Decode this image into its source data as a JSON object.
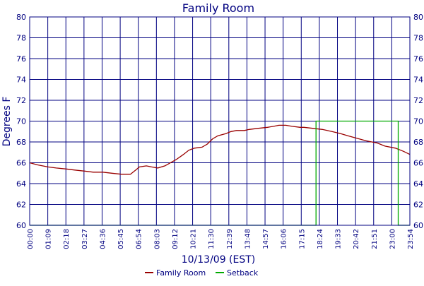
{
  "chart_data": {
    "type": "line",
    "title": "Family Room",
    "xlabel": "10/13/09 (EST)",
    "ylabel": "Degrees F",
    "ylim": [
      60,
      80
    ],
    "xlim_minutes": [
      0,
      1434
    ],
    "y_ticks": [
      60,
      62,
      64,
      66,
      68,
      70,
      72,
      74,
      76,
      78,
      80
    ],
    "x_tick_labels": [
      "00:00",
      "01:09",
      "02:18",
      "03:27",
      "04:36",
      "05:45",
      "06:54",
      "08:03",
      "09:12",
      "10:21",
      "11:30",
      "12:39",
      "13:48",
      "14:57",
      "16:06",
      "17:15",
      "18:24",
      "19:33",
      "20:42",
      "21:51",
      "23:00",
      "23:54"
    ],
    "grid": true,
    "legend_position": "bottom",
    "series": [
      {
        "name": "Family Room",
        "color": "#990000",
        "x": [
          "00:00",
          "00:30",
          "01:09",
          "01:40",
          "02:18",
          "02:50",
          "03:27",
          "04:00",
          "04:36",
          "05:10",
          "05:45",
          "06:20",
          "06:40",
          "06:54",
          "07:20",
          "07:40",
          "08:03",
          "08:30",
          "09:12",
          "09:40",
          "10:00",
          "10:21",
          "10:50",
          "11:10",
          "11:30",
          "11:50",
          "12:20",
          "12:39",
          "13:00",
          "13:30",
          "13:48",
          "14:20",
          "14:57",
          "15:20",
          "15:40",
          "16:06",
          "16:30",
          "17:00",
          "17:15",
          "17:50",
          "18:24",
          "19:00",
          "19:33",
          "20:00",
          "20:42",
          "21:10",
          "21:51",
          "22:20",
          "23:00",
          "23:30",
          "23:54"
        ],
        "values": [
          66.0,
          65.8,
          65.6,
          65.5,
          65.4,
          65.3,
          65.2,
          65.1,
          65.1,
          65.0,
          64.9,
          64.9,
          65.3,
          65.6,
          65.7,
          65.6,
          65.5,
          65.7,
          66.3,
          66.8,
          67.2,
          67.4,
          67.5,
          67.8,
          68.3,
          68.6,
          68.8,
          69.0,
          69.1,
          69.1,
          69.2,
          69.3,
          69.4,
          69.5,
          69.6,
          69.6,
          69.5,
          69.4,
          69.4,
          69.3,
          69.2,
          69.0,
          68.8,
          68.6,
          68.3,
          68.1,
          67.9,
          67.6,
          67.4,
          67.1,
          66.8
        ]
      },
      {
        "name": "Setback",
        "color": "#00aa00",
        "x": [
          "00:00",
          "18:00",
          "18:00",
          "23:10",
          "23:10",
          "23:54"
        ],
        "values": [
          60,
          60,
          70,
          70,
          60,
          60
        ]
      }
    ]
  }
}
